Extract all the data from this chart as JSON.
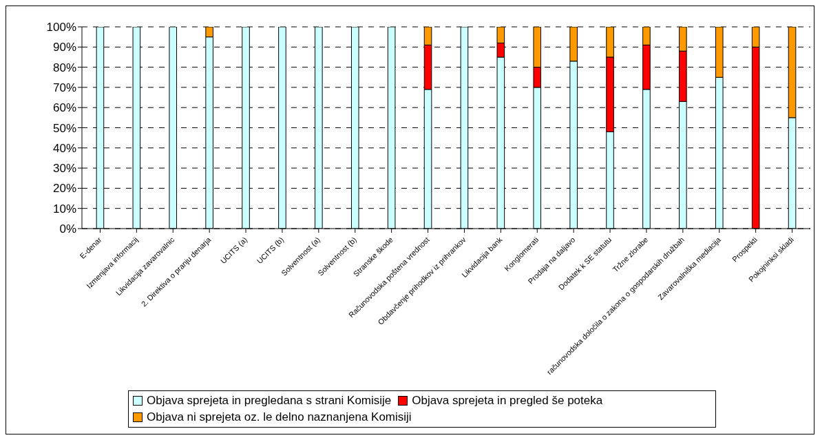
{
  "chart_data": {
    "type": "bar",
    "stacked": true,
    "categories": [
      "E-denar",
      "Izmenjava informacij",
      "Likvidacija zavarovalnic",
      "2. Direktiva o pranju denarja",
      "UCITS (a)",
      "UCITS (b)",
      "Solventnost (a)",
      "Solventnost (b)",
      "Stranske škode",
      "Računovodska poštena vrednost",
      "Obdavčenje prihodkov iz prihrankov",
      "Likvidacija bank",
      "Konglomerati",
      "Prodaja na daljavo",
      "Dodatek k SE statutu",
      "Tržne zlorabe",
      "računovodska določila o zakona o gospodarskih družbah",
      "Zavarovalniška mediacija",
      "Prospekti",
      "Pokojninksi skladi"
    ],
    "series": [
      {
        "name": "Objava sprejeta in pregledana s strani Komisije",
        "color": "#ccffff",
        "values": [
          100,
          100,
          100,
          95,
          100,
          100,
          100,
          100,
          100,
          69,
          100,
          85,
          70,
          83,
          48,
          69,
          63,
          75,
          0,
          55
        ]
      },
      {
        "name": "Objava sprejeta in pregled še poteka",
        "color": "#ff0000",
        "values": [
          0,
          0,
          0,
          0,
          0,
          0,
          0,
          0,
          0,
          22,
          0,
          7,
          10,
          0,
          37,
          22,
          25,
          0,
          90,
          0
        ]
      },
      {
        "name": "Objava ni sprejeta oz. le delno naznanjena Komisiji",
        "color": "#ff9900",
        "values": [
          0,
          0,
          0,
          5,
          0,
          0,
          0,
          0,
          0,
          9,
          0,
          8,
          20,
          17,
          15,
          9,
          12,
          25,
          10,
          45
        ]
      }
    ],
    "ylim": [
      0,
      100
    ],
    "yticks": [
      {
        "value": 0,
        "label": "0%"
      },
      {
        "value": 10,
        "label": "10%"
      },
      {
        "value": 20,
        "label": "20%"
      },
      {
        "value": 30,
        "label": "30%"
      },
      {
        "value": 40,
        "label": "40%"
      },
      {
        "value": 50,
        "label": "50%"
      },
      {
        "value": 60,
        "label": "60%"
      },
      {
        "value": 70,
        "label": "70%"
      },
      {
        "value": 80,
        "label": "80%"
      },
      {
        "value": 90,
        "label": "90%"
      },
      {
        "value": 100,
        "label": "100%"
      }
    ],
    "grid": "y",
    "legend": "bottom"
  }
}
